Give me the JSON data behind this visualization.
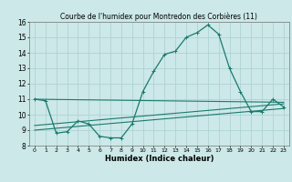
{
  "title": "Courbe de l'humidex pour Montredon des Corbières (11)",
  "xlabel": "Humidex (Indice chaleur)",
  "xlim": [
    -0.5,
    23.5
  ],
  "ylim": [
    8,
    16
  ],
  "xticks": [
    0,
    1,
    2,
    3,
    4,
    5,
    6,
    7,
    8,
    9,
    10,
    11,
    12,
    13,
    14,
    15,
    16,
    17,
    18,
    19,
    20,
    21,
    22,
    23
  ],
  "yticks": [
    8,
    9,
    10,
    11,
    12,
    13,
    14,
    15,
    16
  ],
  "bg_color": "#cce8e8",
  "grid_color": "#aacfcf",
  "line_color": "#1a7a6e",
  "line1_x": [
    0,
    1,
    2,
    3,
    4,
    5,
    6,
    7,
    8,
    9,
    10,
    11,
    12,
    13,
    14,
    15,
    16,
    17,
    18,
    19,
    20,
    21,
    22,
    23
  ],
  "line1_y": [
    11.0,
    10.9,
    8.8,
    8.9,
    9.6,
    9.4,
    8.6,
    8.5,
    8.5,
    9.4,
    11.5,
    12.8,
    13.9,
    14.1,
    15.0,
    15.3,
    15.8,
    15.2,
    13.0,
    11.5,
    10.2,
    10.2,
    11.0,
    10.5
  ],
  "line2_x": [
    0,
    23
  ],
  "line2_y": [
    11.0,
    10.8
  ],
  "line3_x": [
    0,
    23
  ],
  "line3_y": [
    9.3,
    10.7
  ],
  "line4_x": [
    0,
    23
  ],
  "line4_y": [
    9.0,
    10.4
  ]
}
